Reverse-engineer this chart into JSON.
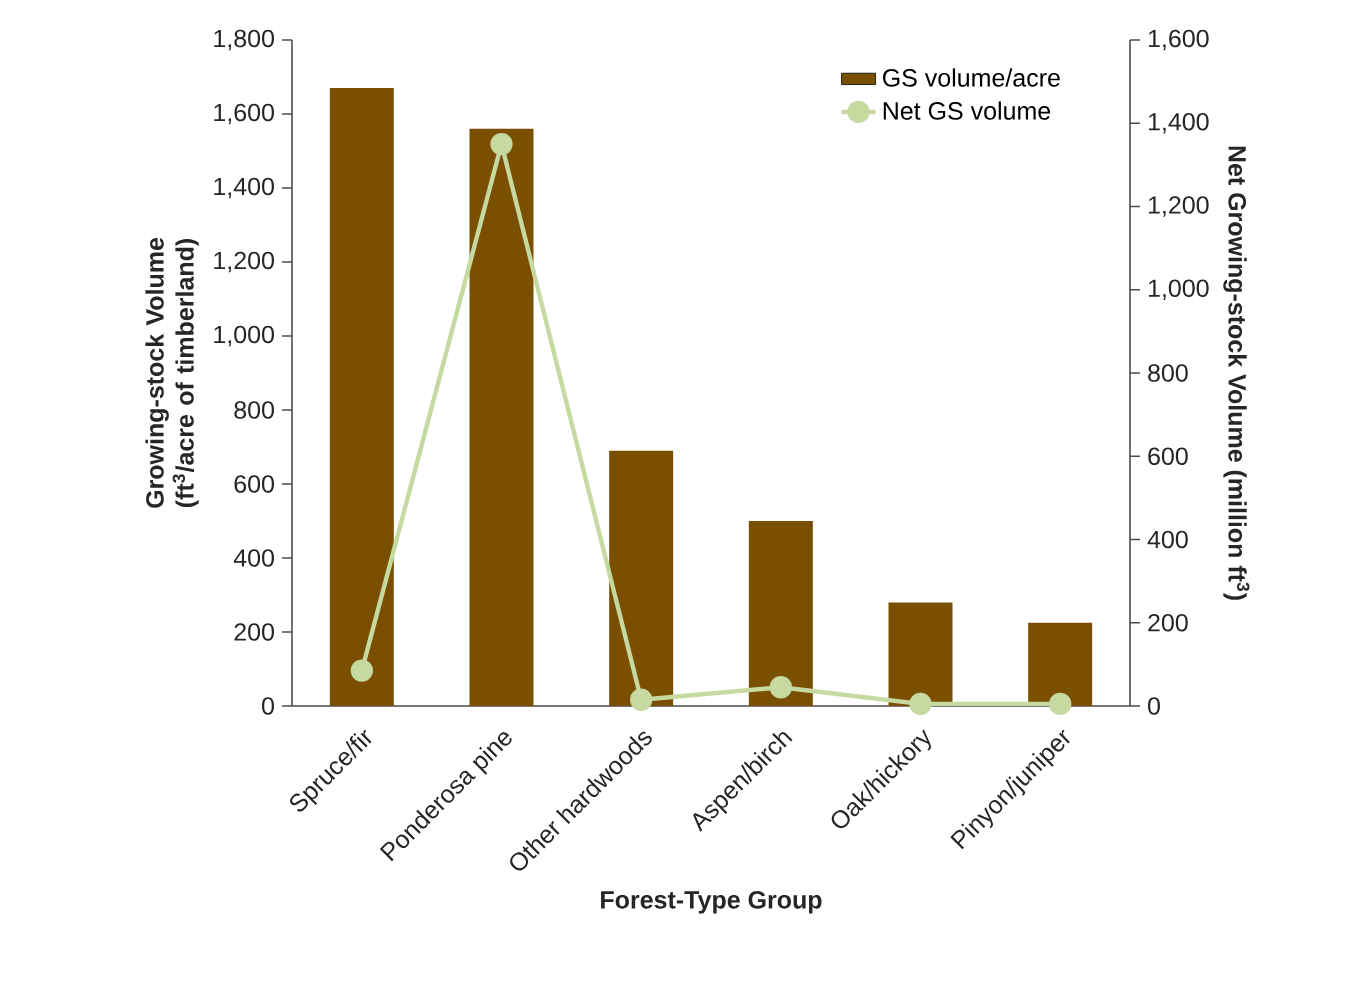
{
  "chart_data": {
    "type": "bar",
    "categories": [
      "Spruce/fir",
      "Ponderosa pine",
      "Other hardwoods",
      "Aspen/birch",
      "Oak/hickory",
      "Pinyon/juniper"
    ],
    "series": [
      {
        "name": "GS volume/acre",
        "color": "#7a5000",
        "values": [
          1670,
          1560,
          690,
          500,
          280,
          225
        ]
      },
      {
        "name": "Net GS volume",
        "type": "line",
        "axis": "y2",
        "color": "#c5d9a0",
        "marker": "circle",
        "values": [
          85,
          1350,
          15,
          45,
          5,
          5
        ]
      }
    ],
    "xlabel": "Forest-Type Group",
    "ylabel": "Growing-stock Volume (ft$^{3}$/acre of timberland)",
    "y2label": "Net Growing-stock Volume (million ft$^{3}$)",
    "ylim": [
      0,
      1800
    ],
    "yticks": [
      0,
      200,
      400,
      600,
      800,
      {
        "value": 1000,
        "label": "1,000"
      },
      {
        "value": 1200,
        "label": "1,200"
      },
      {
        "value": 1400,
        "label": "1,400"
      },
      {
        "value": 1600,
        "label": "1,600"
      },
      {
        "value": 1800,
        "label": "1,800"
      }
    ],
    "y2lim": [
      0,
      1600
    ],
    "y2ticks": [
      0,
      200,
      400,
      600,
      800,
      {
        "value": 1000,
        "label": "1,000"
      },
      {
        "value": 1200,
        "label": "1,200"
      },
      {
        "value": 1400,
        "label": "1,400"
      },
      {
        "value": 1600,
        "label": "1,600"
      }
    ],
    "legend": "top right"
  }
}
